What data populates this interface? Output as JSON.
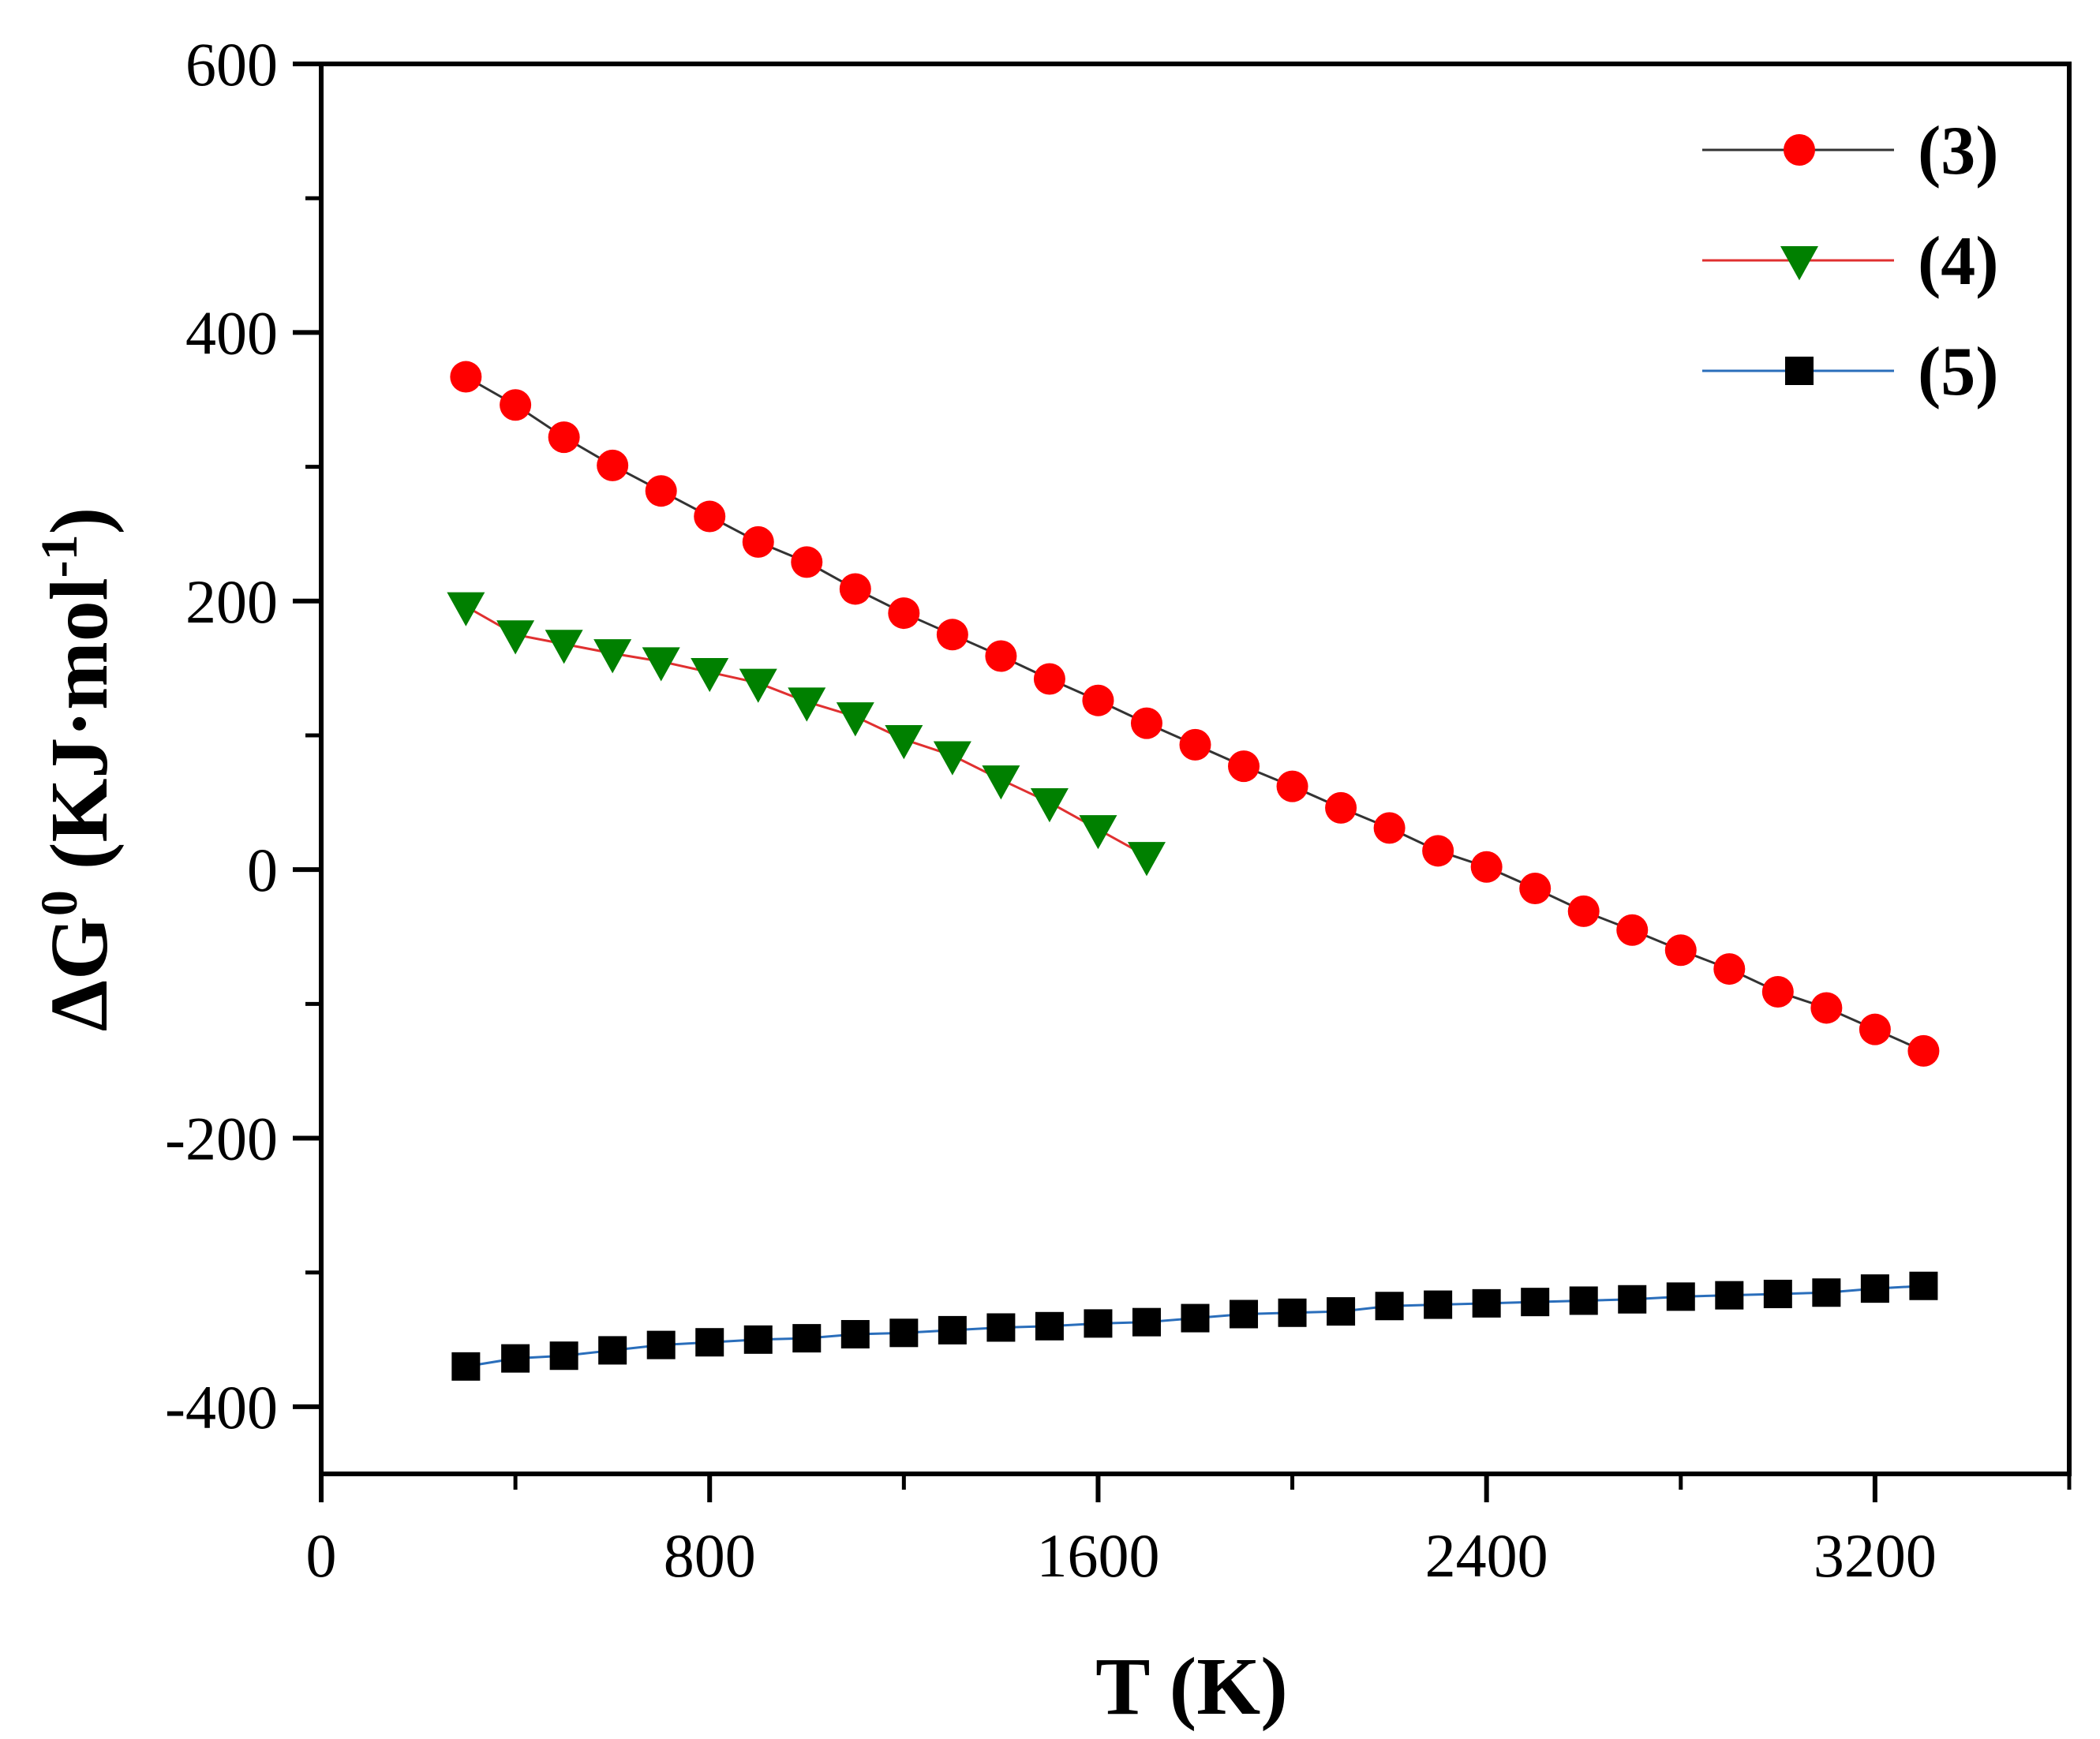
{
  "chart_data": {
    "type": "line",
    "title": "",
    "xlabel": "T (K)",
    "ylabel_main": "ΔG",
    "ylabel_sup": "0",
    "ylabel_unit": " (KJ·mol",
    "ylabel_unit_sup": "-1",
    "ylabel_close": ")",
    "xlim": [
      0,
      3600
    ],
    "ylim": [
      -450,
      600
    ],
    "xticks": [
      0,
      800,
      1600,
      2400,
      3200
    ],
    "xtick_labels": [
      "0",
      "800",
      "1600",
      "2400",
      "3200"
    ],
    "xminor": [
      400,
      1200,
      2000,
      2800,
      3600
    ],
    "yticks": [
      -400,
      -200,
      0,
      200,
      400,
      600
    ],
    "ytick_labels": [
      "-400",
      "-200",
      "0",
      "200",
      "400",
      "600"
    ],
    "yminor": [
      -300,
      -100,
      100,
      300,
      500
    ],
    "grid": false,
    "legend_position": "top-right",
    "series": [
      {
        "name": "(3)",
        "marker": "circle",
        "marker_color": "#ff0000",
        "line_color": "#333333",
        "x": [
          298,
          400,
          500,
          600,
          700,
          800,
          900,
          1000,
          1100,
          1200,
          1300,
          1400,
          1500,
          1600,
          1700,
          1800,
          1900,
          2000,
          2100,
          2200,
          2300,
          2400,
          2500,
          2600,
          2700,
          2800,
          2900,
          3000,
          3100,
          3200,
          3300
        ],
        "values": [
          367,
          346,
          322,
          301,
          282,
          263,
          244,
          229,
          209,
          191,
          175,
          159,
          142,
          126,
          109,
          93,
          77,
          62,
          46,
          31,
          14,
          2,
          -14,
          -31,
          -45,
          -60,
          -74,
          -91,
          -103,
          -119,
          -135
        ]
      },
      {
        "name": "(4)",
        "marker": "triangle-down",
        "marker_color": "#008000",
        "line_color": "#e03030",
        "x": [
          298,
          400,
          500,
          600,
          700,
          800,
          900,
          1000,
          1100,
          1200,
          1300,
          1400,
          1500,
          1600,
          1700
        ],
        "values": [
          196,
          175,
          168,
          161,
          155,
          147,
          139,
          125,
          114,
          97,
          85,
          67,
          50,
          30,
          10
        ]
      },
      {
        "name": "(5)",
        "marker": "square",
        "marker_color": "#000000",
        "line_color": "#2a6ebb",
        "x": [
          298,
          400,
          500,
          600,
          700,
          800,
          900,
          1000,
          1100,
          1200,
          1300,
          1400,
          1500,
          1600,
          1700,
          1800,
          1900,
          2000,
          2100,
          2200,
          2300,
          2400,
          2500,
          2600,
          2700,
          2800,
          2900,
          3000,
          3100,
          3200,
          3300
        ],
        "values": [
          -370,
          -364,
          -362,
          -358,
          -354,
          -352,
          -350,
          -349,
          -346,
          -345,
          -343,
          -341,
          -340,
          -338,
          -337,
          -334,
          -331,
          -330,
          -329,
          -325,
          -324,
          -323,
          -322,
          -321,
          -320,
          -318,
          -317,
          -316,
          -315,
          -312,
          -310
        ]
      }
    ]
  }
}
